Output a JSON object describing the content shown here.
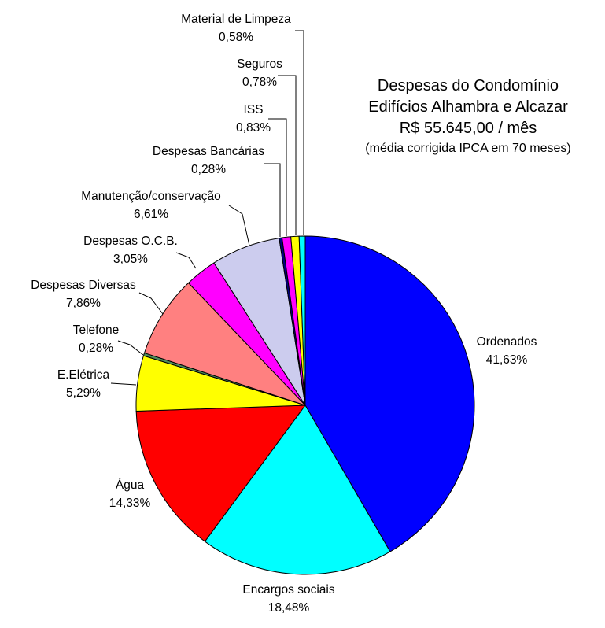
{
  "title": {
    "line1": "Despesas do Condomínio",
    "line2": "Edifícios Alhambra e Alcazar",
    "line3": "R$ 55.645,00 / mês",
    "line4": "(média corrigida IPCA em 70 meses)"
  },
  "chart_data": {
    "type": "pie",
    "title": "Despesas do Condomínio Edifícios Alhambra e Alcazar R$ 55.645,00 / mês (média corrigida IPCA em 70 meses)",
    "start_angle_deg_from_12_clockwise": 0,
    "outline_color": "#000000",
    "background": "#FFFFFF",
    "slices": [
      {
        "label": "Ordenados",
        "value": 41.63,
        "pct_label": "41,63%",
        "color": "#0000FF"
      },
      {
        "label": "Encargos sociais",
        "value": 18.48,
        "pct_label": "18,48%",
        "color": "#00FFFF"
      },
      {
        "label": "Água",
        "value": 14.33,
        "pct_label": "14,33%",
        "color": "#FF0000"
      },
      {
        "label": "E.Elétrica",
        "value": 5.29,
        "pct_label": "5,29%",
        "color": "#FFFF00"
      },
      {
        "label": "Telefone",
        "value": 0.28,
        "pct_label": "0,28%",
        "color": "#4E8C5C"
      },
      {
        "label": "Despesas Diversas",
        "value": 7.86,
        "pct_label": "7,86%",
        "color": "#FF8080"
      },
      {
        "label": "Despesas O.C.B.",
        "value": 3.05,
        "pct_label": "3,05%",
        "color": "#FF00FF"
      },
      {
        "label": "Manutenção/conservação",
        "value": 6.61,
        "pct_label": "6,61%",
        "color": "#CCCCEE"
      },
      {
        "label": "Despesas Bancárias",
        "value": 0.28,
        "pct_label": "0,28%",
        "color": "#000080"
      },
      {
        "label": "ISS",
        "value": 0.83,
        "pct_label": "0,83%",
        "color": "#FF00FF"
      },
      {
        "label": "Seguros",
        "value": 0.78,
        "pct_label": "0,78%",
        "color": "#FFFF00"
      },
      {
        "label": "Material de Limpeza",
        "value": 0.58,
        "pct_label": "0,58%",
        "color": "#00FFFF"
      }
    ]
  }
}
